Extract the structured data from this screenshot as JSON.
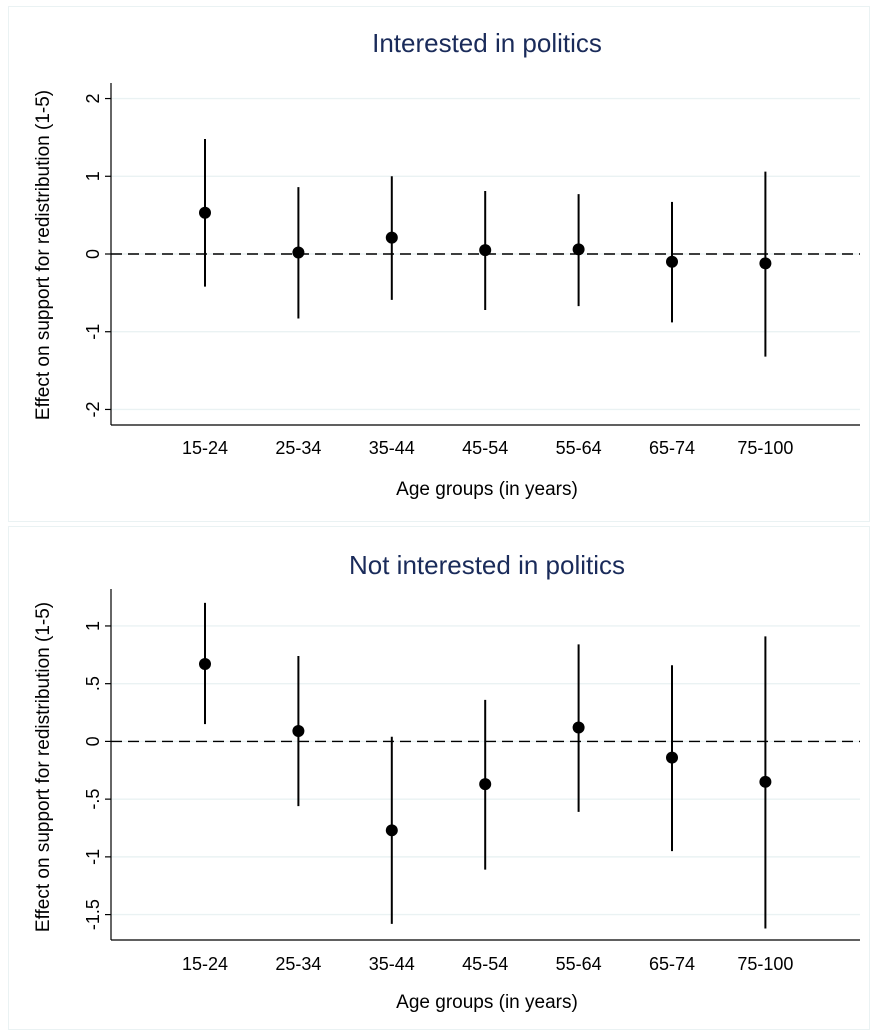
{
  "colors": {
    "title": "#1a2b5a",
    "marker": "#000000",
    "grid": "#eaf2f3",
    "background": "#ffffff"
  },
  "chart_data": [
    {
      "type": "scatter",
      "title": "Interested in politics",
      "xlabel": "Age groups (in years)",
      "ylabel": "Effect on support for redistribution (1-5)",
      "categories": [
        "15-24",
        "25-34",
        "35-44",
        "45-54",
        "55-64",
        "65-74",
        "75-100"
      ],
      "y_ticks": [
        2,
        1,
        0,
        -1,
        -2
      ],
      "y_tick_labels": [
        "2",
        "1",
        "0",
        "-1",
        "-2"
      ],
      "ylim": [
        -2.2,
        2.2
      ],
      "reference_line": 0,
      "grid": true,
      "series": [
        {
          "estimate": [
            0.53,
            0.02,
            0.21,
            0.05,
            0.06,
            -0.1,
            -0.12
          ],
          "ci_low": [
            -0.42,
            -0.83,
            -0.59,
            -0.72,
            -0.67,
            -0.88,
            -1.32
          ],
          "ci_high": [
            1.48,
            0.86,
            1.0,
            0.81,
            0.77,
            0.67,
            1.06
          ]
        }
      ]
    },
    {
      "type": "scatter",
      "title": "Not interested in politics",
      "xlabel": "Age groups (in years)",
      "ylabel": "Effect on support for redistribution (1-5)",
      "categories": [
        "15-24",
        "25-34",
        "35-44",
        "45-54",
        "55-64",
        "65-74",
        "75-100"
      ],
      "y_ticks": [
        1,
        0.5,
        0,
        -0.5,
        -1,
        -1.5
      ],
      "y_tick_labels": [
        "1",
        ".5",
        "0",
        "-.5",
        "-1",
        "-1.5"
      ],
      "ylim": [
        -1.72,
        1.32
      ],
      "reference_line": 0,
      "grid": true,
      "series": [
        {
          "estimate": [
            0.67,
            0.09,
            -0.77,
            -0.37,
            0.12,
            -0.14,
            -0.35
          ],
          "ci_low": [
            0.15,
            -0.56,
            -1.58,
            -1.11,
            -0.61,
            -0.95,
            -1.62
          ],
          "ci_high": [
            1.2,
            0.74,
            0.04,
            0.36,
            0.84,
            0.66,
            0.91
          ]
        }
      ]
    }
  ]
}
